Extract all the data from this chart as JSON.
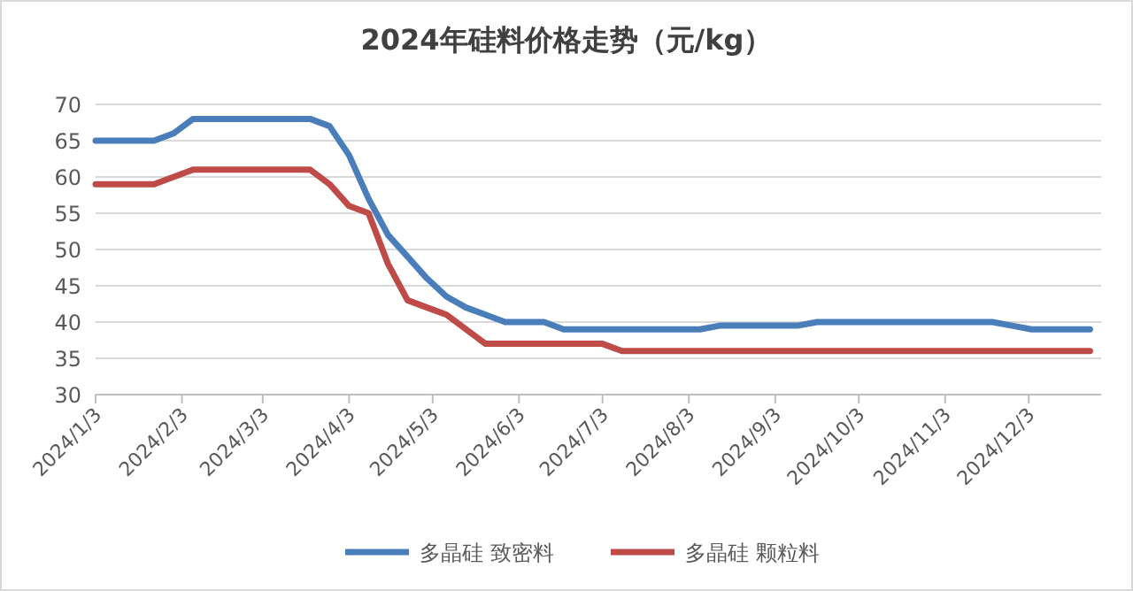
{
  "chart_data": {
    "type": "line",
    "title": "2024年硅料价格走势（元/kg）",
    "x": [
      "2024-01-03",
      "2024-01-10",
      "2024-01-17",
      "2024-01-24",
      "2024-01-31",
      "2024-02-07",
      "2024-02-14",
      "2024-02-21",
      "2024-02-28",
      "2024-03-06",
      "2024-03-13",
      "2024-03-20",
      "2024-03-27",
      "2024-04-03",
      "2024-04-10",
      "2024-04-17",
      "2024-04-24",
      "2024-05-01",
      "2024-05-08",
      "2024-05-15",
      "2024-05-22",
      "2024-05-29",
      "2024-06-05",
      "2024-06-12",
      "2024-06-19",
      "2024-06-26",
      "2024-07-03",
      "2024-07-10",
      "2024-07-17",
      "2024-07-24",
      "2024-07-31",
      "2024-08-07",
      "2024-08-14",
      "2024-08-21",
      "2024-08-28",
      "2024-09-04",
      "2024-09-11",
      "2024-09-18",
      "2024-09-25",
      "2024-10-02",
      "2024-10-09",
      "2024-10-16",
      "2024-10-23",
      "2024-10-30",
      "2024-11-06",
      "2024-11-13",
      "2024-11-20",
      "2024-11-27",
      "2024-12-04",
      "2024-12-11",
      "2024-12-18",
      "2024-12-25"
    ],
    "series": [
      {
        "name": "多晶硅 致密料",
        "color": "#4a7ebb",
        "values": [
          65,
          65,
          65,
          65,
          66,
          68,
          68,
          68,
          68,
          68,
          68,
          68,
          67,
          63,
          57,
          52,
          49,
          46,
          43.5,
          42,
          41,
          40,
          40,
          40,
          39,
          39,
          39,
          39,
          39,
          39,
          39,
          39,
          39.5,
          39.5,
          39.5,
          39.5,
          39.5,
          40,
          40,
          40,
          40,
          40,
          40,
          40,
          40,
          40,
          40,
          39.5,
          39,
          39,
          39,
          39
        ]
      },
      {
        "name": "多晶硅 颗粒料",
        "color": "#be4b48",
        "values": [
          59,
          59,
          59,
          59,
          60,
          61,
          61,
          61,
          61,
          61,
          61,
          61,
          59,
          56,
          55,
          48,
          43,
          42,
          41,
          39,
          37,
          37,
          37,
          37,
          37,
          37,
          37,
          36,
          36,
          36,
          36,
          36,
          36,
          36,
          36,
          36,
          36,
          36,
          36,
          36,
          36,
          36,
          36,
          36,
          36,
          36,
          36,
          36,
          36,
          36,
          36,
          36
        ]
      }
    ],
    "xlim": [
      "2024-01-03",
      "2024-12-29"
    ],
    "xticks": [
      {
        "value": "2024-01-03",
        "label": "2024/1/3"
      },
      {
        "value": "2024-02-03",
        "label": "2024/2/3"
      },
      {
        "value": "2024-03-03",
        "label": "2024/3/3"
      },
      {
        "value": "2024-04-03",
        "label": "2024/4/3"
      },
      {
        "value": "2024-05-03",
        "label": "2024/5/3"
      },
      {
        "value": "2024-06-03",
        "label": "2024/6/3"
      },
      {
        "value": "2024-07-03",
        "label": "2024/7/3"
      },
      {
        "value": "2024-08-03",
        "label": "2024/8/3"
      },
      {
        "value": "2024-09-03",
        "label": "2024/9/3"
      },
      {
        "value": "2024-10-03",
        "label": "2024/10/3"
      },
      {
        "value": "2024-11-03",
        "label": "2024/11/3"
      },
      {
        "value": "2024-12-03",
        "label": "2024/12/3"
      }
    ],
    "ylim": [
      30,
      70
    ],
    "yticks": [
      30,
      35,
      40,
      45,
      50,
      55,
      60,
      65,
      70
    ],
    "grid": "y",
    "legend": "bottom",
    "marker": "none",
    "line_style": "solid"
  }
}
